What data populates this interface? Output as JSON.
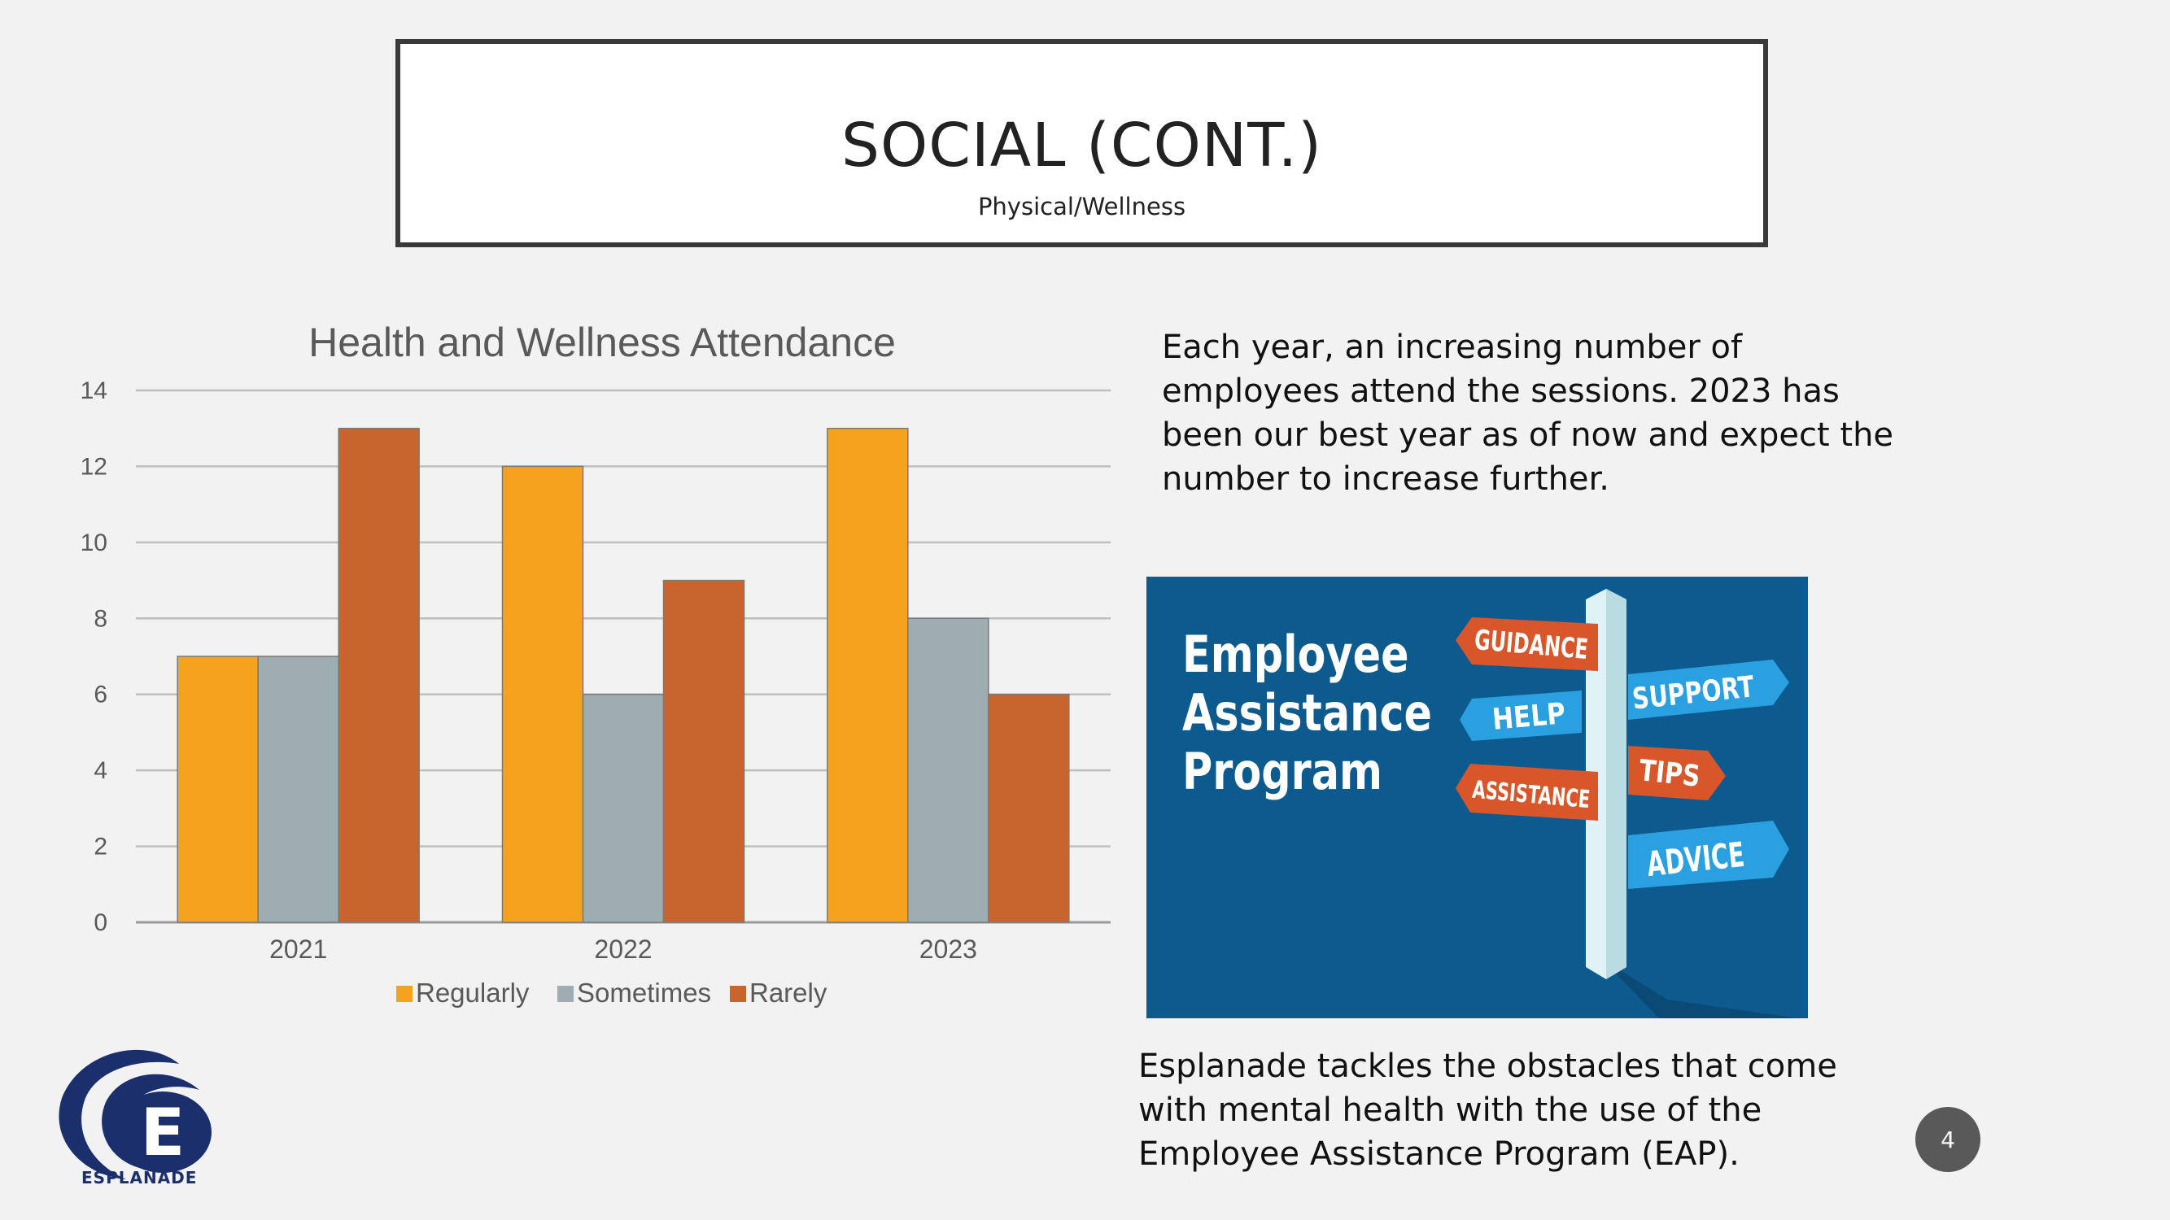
{
  "slide": {
    "title": "SOCIAL (CONT.)",
    "subtitle": "Physical/Wellness",
    "page_number": "4"
  },
  "text": {
    "paragraph1": "Each year, an increasing number of employees attend the sessions. 2023 has been our best year as of now and expect the number to increase further.",
    "paragraph2": "Esplanade tackles the obstacles that come with mental health with the use of the Employee Assistance Program (EAP)."
  },
  "eap_image": {
    "heading_line1": "Employee",
    "heading_line2": "Assistance",
    "heading_line3": "Program",
    "signs": [
      "GUIDANCE",
      "HELP",
      "SUPPORT",
      "TIPS",
      "ASSISTANCE",
      "ADVICE"
    ]
  },
  "logo": {
    "name": "ESPLANADE",
    "letter": "E"
  },
  "colors": {
    "regularly": "#f5a31e",
    "sometimes": "#9eadb2",
    "rarely": "#c8652e",
    "eap_bg": "#0d5a8e",
    "sign_orange": "#d8562a",
    "sign_blue": "#2aa0e0"
  },
  "chart_data": {
    "type": "bar",
    "title": "Health and Wellness Attendance",
    "categories": [
      "2021",
      "2022",
      "2023"
    ],
    "series": [
      {
        "name": "Regularly",
        "values": [
          7,
          12,
          13
        ]
      },
      {
        "name": "Sometimes",
        "values": [
          7,
          6,
          8
        ]
      },
      {
        "name": "Rarely",
        "values": [
          13,
          9,
          6
        ]
      }
    ],
    "ylim": [
      0,
      14
    ],
    "yticks": [
      0,
      2,
      4,
      6,
      8,
      10,
      12,
      14
    ],
    "grid": true,
    "legend": "bottom"
  }
}
